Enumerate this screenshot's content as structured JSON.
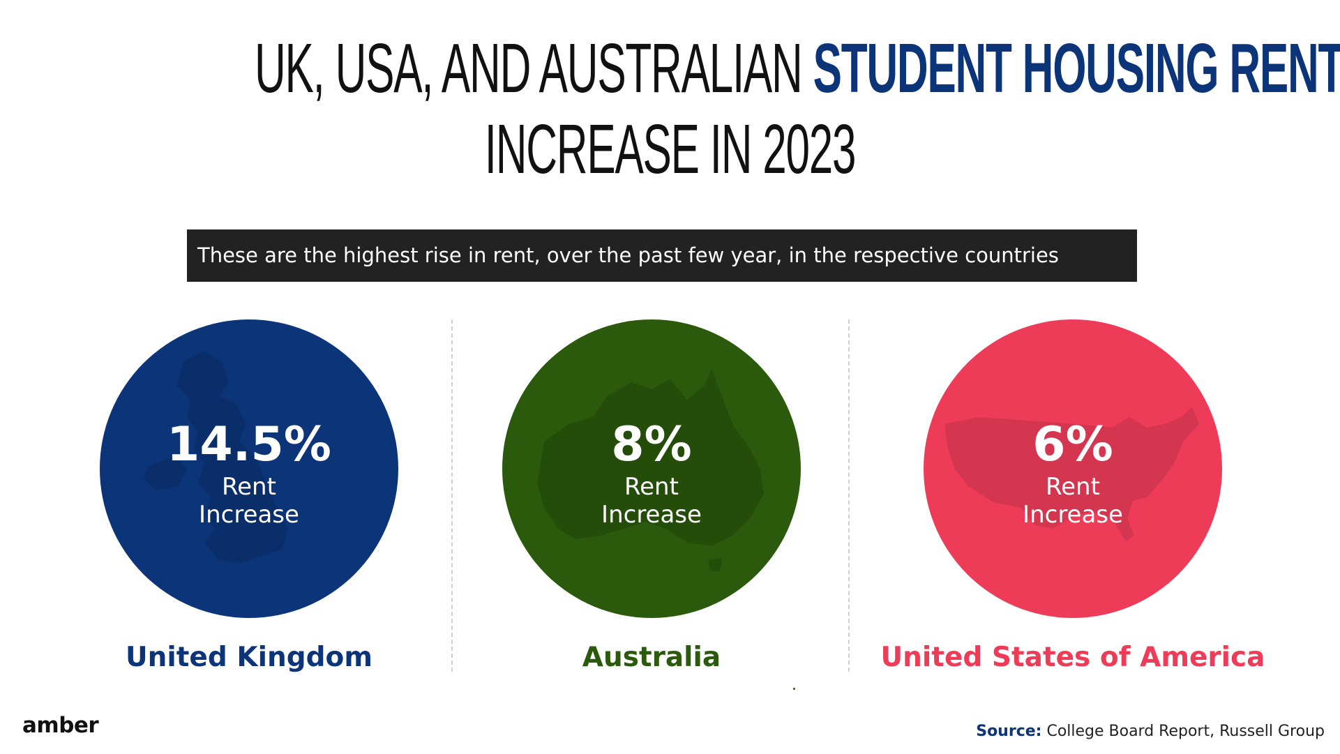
{
  "title": {
    "part1": "UK, USA, AND AUSTRALIAN",
    "part2_highlight": "STUDENT HOUSING RENT",
    "line2": "INCREASE IN 2023",
    "highlight_color": "#0c3579"
  },
  "banner_text": "These are the highest rise in rent, over the past few year, in the respective countries",
  "stats": [
    {
      "value": "14.5%",
      "label_line1": "Rent",
      "label_line2": "Increase",
      "country": "United Kingdom",
      "color": "#0c3579",
      "map_icon": "uk-map-icon"
    },
    {
      "value": "8%",
      "label_line1": "Rent",
      "label_line2": "Increase",
      "country": "Australia",
      "color": "#2b5a0c",
      "map_icon": "australia-map-icon"
    },
    {
      "value": "6%",
      "label_line1": "Rent",
      "label_line2": "Increase",
      "country": "United States of America",
      "color": "#ed3b58",
      "map_icon": "usa-map-icon"
    }
  ],
  "footer": {
    "logo": "amber",
    "source_label": "Source:",
    "source_text": "College Board Report, Russell Group"
  }
}
